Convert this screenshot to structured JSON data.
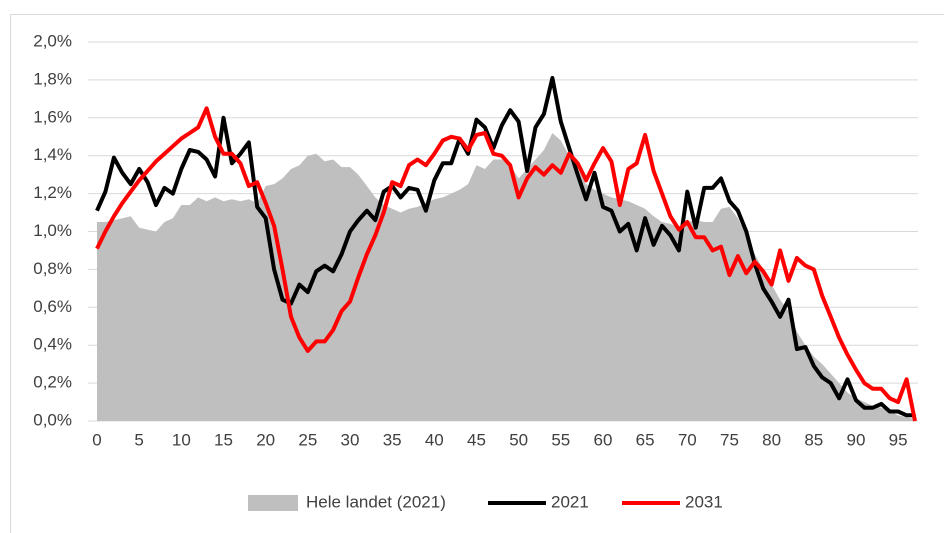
{
  "chart_data": {
    "type": "line",
    "x": [
      0,
      1,
      2,
      3,
      4,
      5,
      6,
      7,
      8,
      9,
      10,
      11,
      12,
      13,
      14,
      15,
      16,
      17,
      18,
      19,
      20,
      21,
      22,
      23,
      24,
      25,
      26,
      27,
      28,
      29,
      30,
      31,
      32,
      33,
      34,
      35,
      36,
      37,
      38,
      39,
      40,
      41,
      42,
      43,
      44,
      45,
      46,
      47,
      48,
      49,
      50,
      51,
      52,
      53,
      54,
      55,
      56,
      57,
      58,
      59,
      60,
      61,
      62,
      63,
      64,
      65,
      66,
      67,
      68,
      69,
      70,
      71,
      72,
      73,
      74,
      75,
      76,
      77,
      78,
      79,
      80,
      81,
      82,
      83,
      84,
      85,
      86,
      87,
      88,
      89,
      90,
      91,
      92,
      93,
      94,
      95,
      96,
      97
    ],
    "xlim": [
      0,
      97
    ],
    "xticks": [
      0,
      5,
      10,
      15,
      20,
      25,
      30,
      35,
      40,
      45,
      50,
      55,
      60,
      65,
      70,
      75,
      80,
      85,
      90,
      95
    ],
    "ylim": [
      0,
      2.0
    ],
    "yticks": [
      {
        "value": 0,
        "label": "0,0%"
      },
      {
        "value": 0.2,
        "label": "0,2%"
      },
      {
        "value": 0.4,
        "label": "0,4%"
      },
      {
        "value": 0.6,
        "label": "0,6%"
      },
      {
        "value": 0.8,
        "label": "0,8%"
      },
      {
        "value": 1.0,
        "label": "1,0%"
      },
      {
        "value": 1.2,
        "label": "1,2%"
      },
      {
        "value": 1.4,
        "label": "1,4%"
      },
      {
        "value": 1.6,
        "label": "1,6%"
      },
      {
        "value": 1.8,
        "label": "1,8%"
      },
      {
        "value": 2.0,
        "label": "2,0%"
      }
    ],
    "grid": true,
    "legend": "bottom",
    "series": [
      {
        "name": "Hele landet (2021)",
        "type": "area",
        "color": "#bfbfbf",
        "values": [
          1.05,
          1.05,
          1.06,
          1.07,
          1.08,
          1.02,
          1.01,
          1.0,
          1.05,
          1.07,
          1.14,
          1.14,
          1.18,
          1.16,
          1.18,
          1.16,
          1.17,
          1.16,
          1.17,
          1.15,
          1.24,
          1.25,
          1.28,
          1.33,
          1.35,
          1.4,
          1.41,
          1.37,
          1.38,
          1.34,
          1.34,
          1.3,
          1.24,
          1.18,
          1.14,
          1.12,
          1.1,
          1.12,
          1.13,
          1.15,
          1.17,
          1.18,
          1.2,
          1.22,
          1.25,
          1.35,
          1.33,
          1.38,
          1.38,
          1.35,
          1.28,
          1.33,
          1.38,
          1.43,
          1.52,
          1.48,
          1.4,
          1.33,
          1.25,
          1.22,
          1.2,
          1.18,
          1.17,
          1.16,
          1.14,
          1.12,
          1.08,
          1.05,
          1.04,
          1.02,
          1.05,
          1.06,
          1.05,
          1.05,
          1.12,
          1.13,
          1.07,
          0.98,
          0.88,
          0.8,
          0.72,
          0.64,
          0.58,
          0.47,
          0.4,
          0.34,
          0.3,
          0.25,
          0.2,
          0.15,
          0.12,
          0.1,
          0.08,
          0.07,
          0.05,
          0.03,
          0.02,
          0.01
        ]
      },
      {
        "name": "2021",
        "type": "line",
        "color": "#000000",
        "values": [
          1.11,
          1.21,
          1.39,
          1.31,
          1.25,
          1.33,
          1.26,
          1.14,
          1.23,
          1.2,
          1.33,
          1.43,
          1.42,
          1.38,
          1.29,
          1.6,
          1.36,
          1.41,
          1.47,
          1.13,
          1.07,
          0.8,
          0.64,
          0.62,
          0.72,
          0.68,
          0.79,
          0.82,
          0.79,
          0.88,
          1.0,
          1.06,
          1.11,
          1.06,
          1.21,
          1.24,
          1.18,
          1.23,
          1.22,
          1.11,
          1.27,
          1.36,
          1.36,
          1.49,
          1.41,
          1.59,
          1.55,
          1.44,
          1.56,
          1.64,
          1.58,
          1.32,
          1.55,
          1.62,
          1.81,
          1.58,
          1.44,
          1.3,
          1.17,
          1.31,
          1.13,
          1.11,
          1.0,
          1.04,
          0.9,
          1.07,
          0.93,
          1.03,
          0.98,
          0.9,
          1.21,
          1.02,
          1.23,
          1.23,
          1.28,
          1.16,
          1.11,
          1.0,
          0.83,
          0.7,
          0.63,
          0.55,
          0.64,
          0.38,
          0.39,
          0.29,
          0.23,
          0.2,
          0.12,
          0.22,
          0.11,
          0.07,
          0.07,
          0.09,
          0.05,
          0.05,
          0.03,
          0.03
        ]
      },
      {
        "name": "2031",
        "type": "line",
        "color": "#ff0000",
        "values": [
          0.91,
          1.0,
          1.08,
          1.15,
          1.21,
          1.27,
          1.32,
          1.37,
          1.41,
          1.45,
          1.49,
          1.52,
          1.55,
          1.65,
          1.5,
          1.41,
          1.41,
          1.36,
          1.24,
          1.26,
          1.15,
          1.03,
          0.8,
          0.55,
          0.44,
          0.37,
          0.42,
          0.42,
          0.48,
          0.58,
          0.63,
          0.76,
          0.88,
          0.98,
          1.1,
          1.26,
          1.24,
          1.35,
          1.38,
          1.35,
          1.41,
          1.48,
          1.5,
          1.49,
          1.43,
          1.51,
          1.52,
          1.41,
          1.4,
          1.35,
          1.18,
          1.28,
          1.34,
          1.3,
          1.35,
          1.31,
          1.41,
          1.36,
          1.27,
          1.36,
          1.44,
          1.37,
          1.14,
          1.33,
          1.36,
          1.51,
          1.32,
          1.2,
          1.08,
          1.01,
          1.05,
          0.97,
          0.97,
          0.9,
          0.92,
          0.77,
          0.87,
          0.78,
          0.84,
          0.79,
          0.72,
          0.9,
          0.74,
          0.86,
          0.82,
          0.8,
          0.66,
          0.55,
          0.44,
          0.35,
          0.27,
          0.2,
          0.17,
          0.17,
          0.12,
          0.1,
          0.22,
          0.0
        ]
      }
    ]
  }
}
